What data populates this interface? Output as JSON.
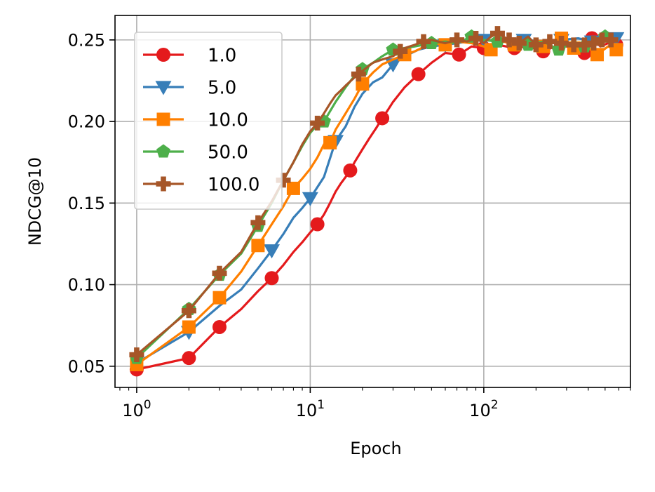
{
  "chart_data": {
    "type": "line",
    "title": "",
    "xlabel": "Epoch",
    "ylabel": "NDCG@10",
    "xscale": "log",
    "xlim": [
      0.75,
      700
    ],
    "ylim": [
      0.037,
      0.265
    ],
    "x_ticks": [
      {
        "value": 1,
        "base": "10",
        "exp": "0"
      },
      {
        "value": 10,
        "base": "10",
        "exp": "1"
      },
      {
        "value": 100,
        "base": "10",
        "exp": "2"
      }
    ],
    "y_ticks": [
      {
        "value": 0.05,
        "label": "0.05"
      },
      {
        "value": 0.1,
        "label": "0.10"
      },
      {
        "value": 0.15,
        "label": "0.15"
      },
      {
        "value": 0.2,
        "label": "0.20"
      },
      {
        "value": 0.25,
        "label": "0.25"
      }
    ],
    "grid": true,
    "legend_position": "upper-left",
    "series": [
      {
        "name": "1.0",
        "color": "#e41a1c",
        "marker": "circle",
        "points": [
          [
            1,
            0.048
          ],
          [
            2,
            0.055
          ],
          [
            3,
            0.074
          ],
          [
            4,
            0.085
          ],
          [
            5,
            0.096
          ],
          [
            6,
            0.104
          ],
          [
            7,
            0.112
          ],
          [
            8,
            0.12
          ],
          [
            9,
            0.126
          ],
          [
            10,
            0.132
          ],
          [
            11,
            0.137
          ],
          [
            12,
            0.143
          ],
          [
            13,
            0.15
          ],
          [
            14,
            0.157
          ],
          [
            15,
            0.162
          ],
          [
            16,
            0.166
          ],
          [
            17,
            0.17
          ],
          [
            18,
            0.175
          ],
          [
            20,
            0.183
          ],
          [
            22,
            0.19
          ],
          [
            24,
            0.196
          ],
          [
            26,
            0.202
          ],
          [
            28,
            0.207
          ],
          [
            30,
            0.212
          ],
          [
            35,
            0.221
          ],
          [
            42,
            0.229
          ],
          [
            50,
            0.236
          ],
          [
            60,
            0.242
          ],
          [
            72,
            0.241
          ],
          [
            85,
            0.246
          ],
          [
            100,
            0.245
          ],
          [
            120,
            0.247
          ],
          [
            150,
            0.245
          ],
          [
            180,
            0.246
          ],
          [
            220,
            0.243
          ],
          [
            270,
            0.247
          ],
          [
            330,
            0.245
          ],
          [
            380,
            0.242
          ],
          [
            420,
            0.251
          ],
          [
            470,
            0.246
          ],
          [
            520,
            0.248
          ],
          [
            580,
            0.247
          ]
        ],
        "marker_x": [
          1,
          2,
          3,
          6,
          11,
          17,
          26,
          42,
          72,
          100,
          150,
          220,
          380,
          420,
          580
        ]
      },
      {
        "name": "5.0",
        "color": "#377eb8",
        "marker": "triangle-down",
        "points": [
          [
            1,
            0.052
          ],
          [
            2,
            0.071
          ],
          [
            3,
            0.087
          ],
          [
            4,
            0.097
          ],
          [
            5,
            0.11
          ],
          [
            6,
            0.121
          ],
          [
            7,
            0.131
          ],
          [
            8,
            0.141
          ],
          [
            9,
            0.147
          ],
          [
            10,
            0.153
          ],
          [
            12,
            0.166
          ],
          [
            14,
            0.188
          ],
          [
            16,
            0.197
          ],
          [
            18,
            0.209
          ],
          [
            20,
            0.217
          ],
          [
            23,
            0.224
          ],
          [
            26,
            0.227
          ],
          [
            30,
            0.235
          ],
          [
            35,
            0.24
          ],
          [
            42,
            0.244
          ],
          [
            50,
            0.246
          ],
          [
            60,
            0.247
          ],
          [
            70,
            0.248
          ],
          [
            80,
            0.249
          ],
          [
            100,
            0.25
          ],
          [
            130,
            0.249
          ],
          [
            170,
            0.25
          ],
          [
            220,
            0.249
          ],
          [
            280,
            0.25
          ],
          [
            350,
            0.251
          ],
          [
            420,
            0.249
          ],
          [
            500,
            0.25
          ],
          [
            580,
            0.251
          ]
        ],
        "marker_x": [
          2,
          6,
          10,
          14,
          30,
          60,
          100,
          170,
          280,
          420,
          580
        ]
      },
      {
        "name": "10.0",
        "color": "#ff7f00",
        "marker": "square",
        "points": [
          [
            1,
            0.051
          ],
          [
            2,
            0.074
          ],
          [
            3,
            0.092
          ],
          [
            4,
            0.108
          ],
          [
            5,
            0.124
          ],
          [
            6,
            0.137
          ],
          [
            7,
            0.148
          ],
          [
            8,
            0.159
          ],
          [
            9,
            0.165
          ],
          [
            10,
            0.171
          ],
          [
            11,
            0.178
          ],
          [
            12,
            0.186
          ],
          [
            13,
            0.187
          ],
          [
            14,
            0.195
          ],
          [
            16,
            0.205
          ],
          [
            18,
            0.214
          ],
          [
            20,
            0.223
          ],
          [
            23,
            0.23
          ],
          [
            26,
            0.235
          ],
          [
            30,
            0.238
          ],
          [
            35,
            0.241
          ],
          [
            40,
            0.243
          ],
          [
            50,
            0.248
          ],
          [
            60,
            0.247
          ],
          [
            70,
            0.249
          ],
          [
            85,
            0.248
          ],
          [
            100,
            0.246
          ],
          [
            110,
            0.244
          ],
          [
            130,
            0.249
          ],
          [
            150,
            0.247
          ],
          [
            180,
            0.25
          ],
          [
            220,
            0.246
          ],
          [
            280,
            0.251
          ],
          [
            330,
            0.245
          ],
          [
            380,
            0.247
          ],
          [
            450,
            0.241
          ],
          [
            520,
            0.246
          ],
          [
            580,
            0.244
          ]
        ],
        "marker_x": [
          1,
          2,
          3,
          5,
          8,
          13,
          20,
          35,
          60,
          110,
          150,
          220,
          280,
          330,
          450,
          580
        ]
      },
      {
        "name": "50.0",
        "color": "#4daf4a",
        "marker": "pentagon",
        "points": [
          [
            1,
            0.055
          ],
          [
            2,
            0.085
          ],
          [
            3,
            0.106
          ],
          [
            4,
            0.119
          ],
          [
            5,
            0.136
          ],
          [
            6,
            0.15
          ],
          [
            7,
            0.164
          ],
          [
            8,
            0.175
          ],
          [
            9,
            0.185
          ],
          [
            10,
            0.193
          ],
          [
            11,
            0.198
          ],
          [
            12,
            0.2
          ],
          [
            14,
            0.212
          ],
          [
            16,
            0.221
          ],
          [
            18,
            0.228
          ],
          [
            20,
            0.232
          ],
          [
            23,
            0.236
          ],
          [
            26,
            0.24
          ],
          [
            30,
            0.244
          ],
          [
            35,
            0.245
          ],
          [
            40,
            0.246
          ],
          [
            50,
            0.248
          ],
          [
            60,
            0.249
          ],
          [
            70,
            0.248
          ],
          [
            85,
            0.252
          ],
          [
            100,
            0.25
          ],
          [
            120,
            0.249
          ],
          [
            150,
            0.25
          ],
          [
            180,
            0.247
          ],
          [
            220,
            0.249
          ],
          [
            270,
            0.244
          ],
          [
            330,
            0.249
          ],
          [
            380,
            0.246
          ],
          [
            430,
            0.249
          ],
          [
            500,
            0.252
          ],
          [
            580,
            0.25
          ]
        ],
        "marker_x": [
          1,
          2,
          3,
          5,
          12,
          20,
          30,
          50,
          85,
          120,
          180,
          270,
          380,
          500
        ]
      },
      {
        "name": "100.0",
        "color": "#a65628",
        "marker": "plus",
        "points": [
          [
            1,
            0.057
          ],
          [
            2,
            0.084
          ],
          [
            3,
            0.107
          ],
          [
            4,
            0.12
          ],
          [
            5,
            0.138
          ],
          [
            6,
            0.151
          ],
          [
            7,
            0.164
          ],
          [
            8,
            0.175
          ],
          [
            9,
            0.186
          ],
          [
            10,
            0.194
          ],
          [
            11,
            0.199
          ],
          [
            12,
            0.205
          ],
          [
            13,
            0.211
          ],
          [
            14,
            0.216
          ],
          [
            15,
            0.219
          ],
          [
            16,
            0.222
          ],
          [
            18,
            0.227
          ],
          [
            20,
            0.231
          ],
          [
            23,
            0.236
          ],
          [
            26,
            0.238
          ],
          [
            30,
            0.24
          ],
          [
            35,
            0.245
          ],
          [
            40,
            0.247
          ],
          [
            45,
            0.249
          ],
          [
            50,
            0.25
          ],
          [
            60,
            0.248
          ],
          [
            70,
            0.25
          ],
          [
            80,
            0.249
          ],
          [
            90,
            0.251
          ],
          [
            100,
            0.248
          ],
          [
            110,
            0.252
          ],
          [
            120,
            0.254
          ],
          [
            140,
            0.25
          ],
          [
            160,
            0.248
          ],
          [
            180,
            0.252
          ],
          [
            200,
            0.247
          ],
          [
            240,
            0.249
          ],
          [
            280,
            0.248
          ],
          [
            330,
            0.247
          ],
          [
            380,
            0.247
          ],
          [
            430,
            0.248
          ],
          [
            480,
            0.25
          ],
          [
            540,
            0.25
          ],
          [
            580,
            0.249
          ]
        ],
        "marker_x": [
          1,
          2,
          3,
          5,
          7,
          11,
          19,
          33,
          45,
          70,
          90,
          120,
          140,
          160,
          200,
          240,
          280,
          330,
          380,
          430,
          480,
          540
        ]
      }
    ]
  }
}
